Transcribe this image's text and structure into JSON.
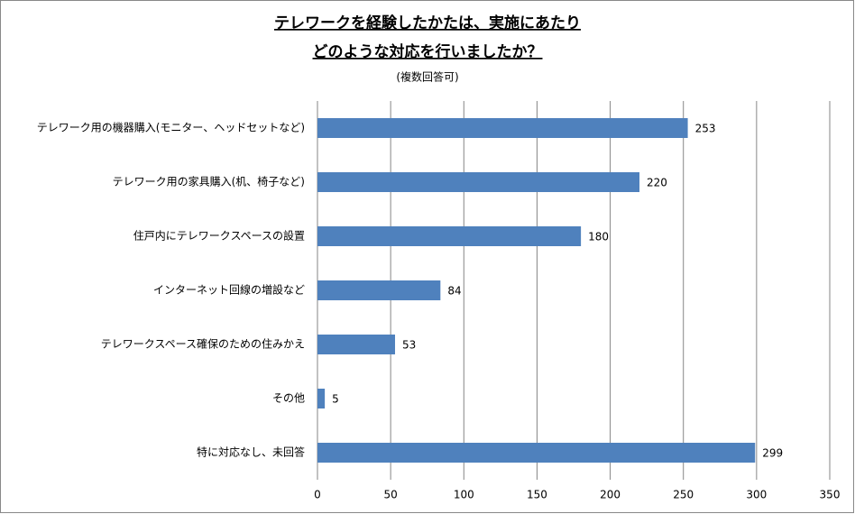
{
  "chart_data": {
    "type": "bar",
    "orientation": "horizontal",
    "title": [
      "テレワークを経験したかたは、実施にあたり",
      "どのような対応を行いましたか？"
    ],
    "subtitle": "(複数回答可)",
    "categories": [
      "テレワーク用の機器購入(モニター、ヘッドセットなど)",
      "テレワーク用の家具購入(机、椅子など)",
      "住戸内にテレワークスペースの設置",
      "インターネット回線の増設など",
      "テレワークスペース確保のための住みかえ",
      "その他",
      "特に対応なし、未回答"
    ],
    "values": [
      253,
      220,
      180,
      84,
      53,
      5,
      299
    ],
    "color": "#4f81bd",
    "xlim": [
      0,
      350
    ],
    "xticks": [
      0,
      50,
      100,
      150,
      200,
      250,
      300,
      350
    ],
    "grid": true
  }
}
